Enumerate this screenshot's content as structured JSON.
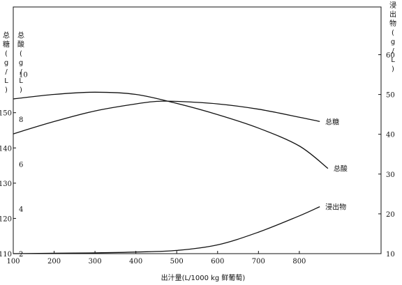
{
  "chart_data": {
    "type": "line",
    "xlabel": "出汁量(L/1000 kg 鲜葡萄)",
    "x_ticks": [
      "100",
      "200",
      "300",
      "400",
      "500",
      "600",
      "700",
      "800"
    ],
    "xlim": [
      100,
      1000
    ],
    "axes": {
      "sugar": {
        "label_chars": [
          "总",
          "糖",
          "(",
          "g",
          "/",
          "L",
          ")"
        ],
        "ticks": [
          "110",
          "120",
          "130",
          "140",
          "150"
        ],
        "range": [
          110,
          180
        ]
      },
      "acid": {
        "label_chars": [
          "总",
          "酸",
          "(",
          "g",
          "/",
          "L",
          ")"
        ],
        "ticks": [
          "2",
          "4",
          "6",
          "8",
          "10"
        ],
        "range": [
          2,
          13
        ]
      },
      "extract": {
        "label_chars": [
          "浸",
          "出",
          "物",
          "(",
          "g",
          "/",
          "L",
          ")"
        ],
        "ticks": [
          "10",
          "20",
          "30",
          "40",
          "50",
          "60"
        ],
        "range": [
          10,
          72
        ]
      }
    },
    "series": [
      {
        "name": "总糖",
        "axis": "sugar",
        "x": [
          100,
          200,
          300,
          400,
          450,
          500,
          600,
          700,
          800,
          850
        ],
        "y": [
          144,
          147.5,
          150.5,
          152.5,
          153.2,
          153.2,
          152.5,
          151,
          148.7,
          147.5
        ]
      },
      {
        "name": "总酸",
        "axis": "acid",
        "x": [
          100,
          200,
          300,
          400,
          500,
          600,
          700,
          800,
          870
        ],
        "y": [
          8.9,
          9.1,
          9.2,
          9.1,
          8.7,
          8.2,
          7.6,
          6.8,
          5.8
        ]
      },
      {
        "name": "浸出物",
        "axis": "extract",
        "x": [
          100,
          200,
          300,
          400,
          500,
          600,
          700,
          800,
          850
        ],
        "y": [
          10,
          10.1,
          10.2,
          10.4,
          10.8,
          12.2,
          15.4,
          19.5,
          21.8
        ]
      }
    ]
  }
}
